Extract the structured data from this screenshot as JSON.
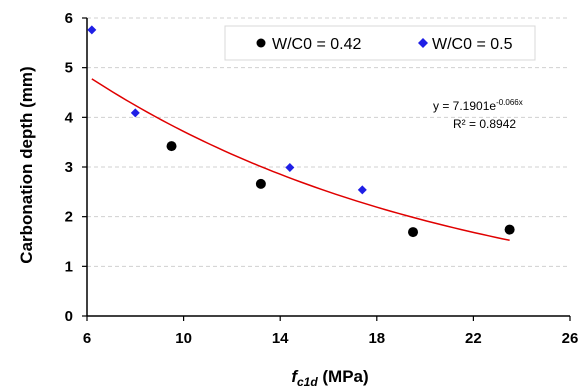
{
  "chart_data": {
    "type": "scatter",
    "xlabel_main": "f",
    "xlabel_sub": "c1d",
    "xlabel_unit": " (MPa)",
    "ylabel": "Carbonation depth (mm)",
    "xlim": [
      6,
      26
    ],
    "ylim": [
      0,
      6
    ],
    "xticks": [
      6,
      10,
      14,
      18,
      22,
      26
    ],
    "yticks": [
      0,
      1,
      2,
      3,
      4,
      5,
      6
    ],
    "grid": "horizontal dashed",
    "legend_position": "top-right",
    "series": [
      {
        "name": "W/C0 = 0.42",
        "marker": "circle",
        "color": "#000000",
        "points": [
          [
            9.5,
            3.42
          ],
          [
            13.2,
            2.66
          ],
          [
            19.5,
            1.69
          ],
          [
            23.5,
            1.74
          ]
        ]
      },
      {
        "name": "W/C0 = 0.5",
        "marker": "diamond",
        "color": "#1f1fe6",
        "points": [
          [
            6.2,
            5.76
          ],
          [
            8.0,
            4.09
          ],
          [
            14.4,
            2.99
          ],
          [
            17.4,
            2.54
          ]
        ]
      }
    ],
    "trendline": {
      "type": "exponential",
      "a": 7.1901,
      "b": -0.066,
      "x_range": [
        6.2,
        23.5
      ],
      "color": "#e00000"
    },
    "equation": {
      "prefix": "y = 7.1901e",
      "exponent": "-0.066x",
      "r2": "R² = 0.8942"
    }
  }
}
